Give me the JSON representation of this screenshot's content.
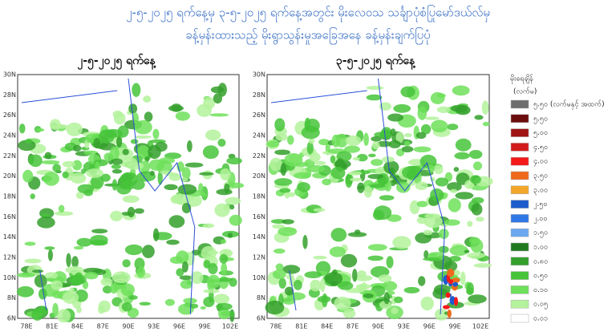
{
  "header": {
    "title_lines": [
      "၂-၅-၂၀၂၅ ရက်နေ့မှ ၃-၅-၂၀၂၅ ရက်နေ့အတွင်း မိုးလေဝသ သင်္ချာပုံစံပြုမော်ဒယ်လ်မှ",
      "ခန့်မှန်းထားသည့် မိုးရွာသွန်းမှုအခြေအနေ ခန့်မှန်းချက်ပြပုံ"
    ]
  },
  "maps": [
    {
      "title": "၂-၅-၂၀၂၅ ရက်နေ့"
    },
    {
      "title": "၃-၅-၂၀၂၅ ရက်နေ့"
    }
  ],
  "axes": {
    "x_labels": [
      "78E",
      "81E",
      "84E",
      "87E",
      "90E",
      "93E",
      "96E",
      "99E",
      "102E"
    ],
    "y_labels": [
      "30N",
      "28N",
      "26N",
      "24N",
      "22N",
      "20N",
      "18N",
      "16N",
      "14N",
      "12N",
      "10N",
      "8N",
      "6N"
    ]
  },
  "legend": {
    "title": "မိုးရေချိန်",
    "unit": "(လက်မ)",
    "items": [
      {
        "label": "၅.၅၀ (လက်မနှင့် အထက်)",
        "color": "#6e6e6e"
      },
      {
        "label": "၅.၅၀",
        "color": "#6b0d0d"
      },
      {
        "label": "၅.၀၀",
        "color": "#a01414"
      },
      {
        "label": "၄.၅၀",
        "color": "#d21c1c"
      },
      {
        "label": "၄.၀၀",
        "color": "#f41a1a"
      },
      {
        "label": "၃.၅၀",
        "color": "#ef6a1c"
      },
      {
        "label": "၃.၀၀",
        "color": "#f3a72a"
      },
      {
        "label": "၂.၅၀",
        "color": "#1e5ccc"
      },
      {
        "label": "၂.၀၀",
        "color": "#2f78e6"
      },
      {
        "label": "၁.၅၀",
        "color": "#6aa8f0"
      },
      {
        "label": "၁.၀၀",
        "color": "#1f7a1f"
      },
      {
        "label": "၀.၈၀",
        "color": "#34a02c"
      },
      {
        "label": "၀.၅၀",
        "color": "#47c43a"
      },
      {
        "label": "၀.၁၀",
        "color": "#6fe05a"
      },
      {
        "label": "၀.၀၅",
        "color": "#b4f29c"
      },
      {
        "label": "၀.၀၁",
        "color": "#ffffff"
      }
    ]
  }
}
